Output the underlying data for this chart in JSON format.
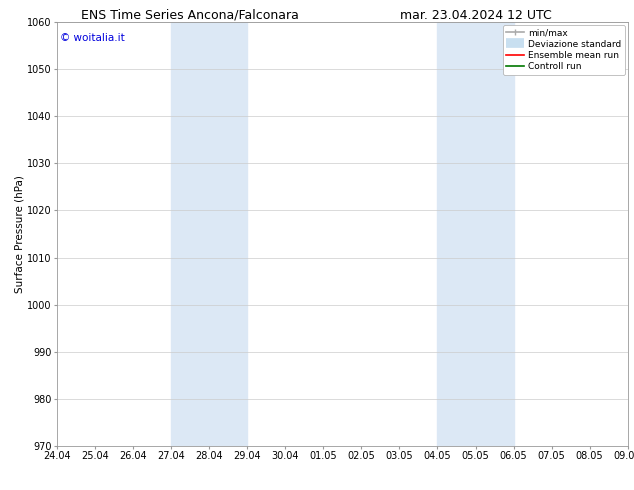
{
  "title_left": "ENS Time Series Ancona/Falconara",
  "title_right": "mar. 23.04.2024 12 UTC",
  "ylabel": "Surface Pressure (hPa)",
  "watermark": "© woitalia.it",
  "ylim": [
    970,
    1060
  ],
  "yticks": [
    970,
    980,
    990,
    1000,
    1010,
    1020,
    1030,
    1040,
    1050,
    1060
  ],
  "xtick_labels": [
    "24.04",
    "25.04",
    "26.04",
    "27.04",
    "28.04",
    "29.04",
    "30.04",
    "01.05",
    "02.05",
    "03.05",
    "04.05",
    "05.05",
    "06.05",
    "07.05",
    "08.05",
    "09.05"
  ],
  "shaded_regions": [
    {
      "xstart": 3,
      "xend": 5,
      "color": "#dce8f5"
    },
    {
      "xstart": 10,
      "xend": 12,
      "color": "#dce8f5"
    }
  ],
  "legend_entries": [
    {
      "label": "min/max",
      "color": "#aaaaaa",
      "lw": 1.2,
      "style": "line_with_caps"
    },
    {
      "label": "Deviazione standard",
      "color": "#c8dff0",
      "lw": 7,
      "style": "thick"
    },
    {
      "label": "Ensemble mean run",
      "color": "#ff0000",
      "lw": 1.2,
      "style": "line"
    },
    {
      "label": "Controll run",
      "color": "#007700",
      "lw": 1.2,
      "style": "line"
    }
  ],
  "background_color": "#ffffff",
  "grid_color": "#cccccc",
  "title_fontsize": 9,
  "tick_fontsize": 7,
  "ylabel_fontsize": 7.5,
  "watermark_fontsize": 7.5,
  "legend_fontsize": 6.5
}
